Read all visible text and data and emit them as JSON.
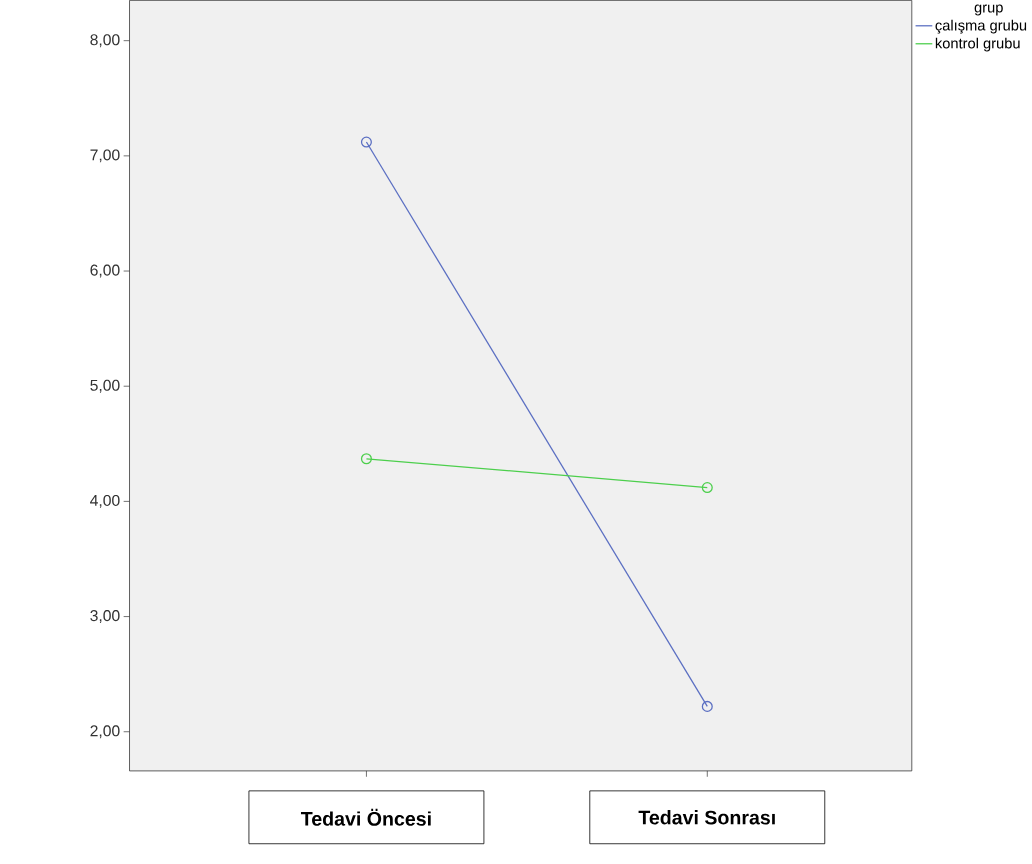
{
  "chart_data": {
    "type": "line",
    "categories": [
      "Tedavi Öncesi",
      "Tedavi Sonrası"
    ],
    "series": [
      {
        "name": "çalışma grubu",
        "color": "#5b6fc2",
        "values": [
          7.12,
          2.22
        ]
      },
      {
        "name": "kontrol grubu",
        "color": "#4ccf4c",
        "values": [
          4.37,
          4.12
        ]
      }
    ],
    "legend_title": "grup",
    "legend": "top right",
    "marker": "circle",
    "line_style": "solid",
    "grid": false,
    "ylim": [
      1.66,
      8.35
    ],
    "yticks": [
      {
        "value": 2,
        "label": "2,00"
      },
      {
        "value": 3,
        "label": "3,00"
      },
      {
        "value": 4,
        "label": "4,00"
      },
      {
        "value": 5,
        "label": "5,00"
      },
      {
        "value": 6,
        "label": "6,00"
      },
      {
        "value": 7,
        "label": "7,00"
      },
      {
        "value": 8,
        "label": "8,00"
      }
    ]
  }
}
